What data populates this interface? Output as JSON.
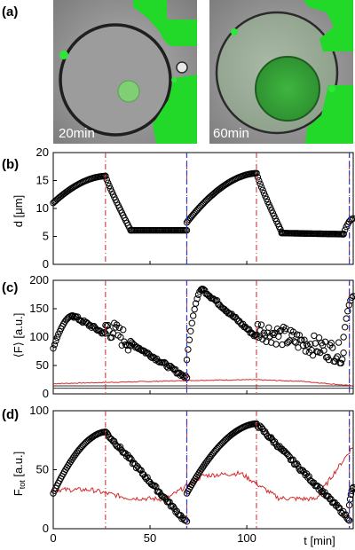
{
  "panel_labels": [
    "(a)",
    "(b)",
    "(c)",
    "(d)"
  ],
  "images": [
    {
      "label": "20min"
    },
    {
      "label": "60min"
    }
  ],
  "colors": {
    "marker_edge": "#000000",
    "red_line": "#d42a2a",
    "red_dashdot": "#c8262b",
    "blue_dash": "#2f3bd6",
    "green": "#22e02a",
    "gray_background": "#8a8a8a"
  },
  "chart_data": [
    {
      "type": "scatter",
      "panel": "(b)",
      "ylabel": "d [μm]",
      "xlabel": "",
      "xlim": [
        0,
        155
      ],
      "ylim": [
        0,
        20
      ],
      "yticks": [
        0,
        5,
        10,
        15,
        20
      ],
      "xticks": [
        0,
        50,
        100
      ],
      "vlines_red": [
        27,
        69,
        105,
        153
      ],
      "vlines_blue": [
        69,
        153
      ],
      "segments": [
        {
          "kind": "grow",
          "x0": 0,
          "x1": 27,
          "y0": 11,
          "y1": 15.8
        },
        {
          "kind": "shrink",
          "x0": 27,
          "x1": 40,
          "y0": 15.8,
          "y1": 6.1
        },
        {
          "kind": "flat",
          "x0": 40,
          "x1": 69,
          "y0": 6.1,
          "y1": 6.1
        },
        {
          "kind": "grow",
          "x0": 69,
          "x1": 105,
          "y0": 7.5,
          "y1": 16.3
        },
        {
          "kind": "shrink",
          "x0": 105,
          "x1": 118,
          "y0": 16.3,
          "y1": 5.8
        },
        {
          "kind": "flat",
          "x0": 118,
          "x1": 150,
          "y0": 5.6,
          "y1": 5.4
        },
        {
          "kind": "grow",
          "x0": 150,
          "x1": 155,
          "y0": 5.5,
          "y1": 8.2
        }
      ]
    },
    {
      "type": "scatter",
      "panel": "(c)",
      "ylabel": "⟨F⟩ [a.u.]",
      "xlabel": "",
      "xlim": [
        0,
        155
      ],
      "ylim": [
        0,
        200
      ],
      "yticks": [
        0,
        50,
        100,
        150,
        200
      ],
      "xticks": [
        0,
        50,
        100
      ],
      "vlines_red": [
        27,
        69,
        105,
        153
      ],
      "vlines_blue": [
        69,
        153
      ],
      "horizontal_lines": [
        10,
        14
      ],
      "red_series_level": [
        18,
        20,
        22,
        24,
        25,
        22,
        14
      ],
      "segments": [
        {
          "kind": "rise",
          "x0": 0,
          "x1": 10,
          "y0": 80,
          "y1": 138
        },
        {
          "kind": "decay",
          "x0": 10,
          "x1": 27,
          "y0": 138,
          "y1": 105
        },
        {
          "kind": "noisy",
          "x0": 27,
          "x1": 40,
          "y0": 120,
          "y1": 90
        },
        {
          "kind": "decay",
          "x0": 40,
          "x1": 69,
          "y0": 90,
          "y1": 28
        },
        {
          "kind": "rise",
          "x0": 69,
          "x1": 77,
          "y0": 60,
          "y1": 185
        },
        {
          "kind": "decay",
          "x0": 77,
          "x1": 105,
          "y0": 185,
          "y1": 100
        },
        {
          "kind": "noisy",
          "x0": 105,
          "x1": 150,
          "y0": 115,
          "y1": 70
        },
        {
          "kind": "rise",
          "x0": 150,
          "x1": 155,
          "y0": 100,
          "y1": 172
        }
      ]
    },
    {
      "type": "scatter",
      "panel": "(d)",
      "ylabel": "F_tot [a.u.]",
      "xlabel": "t [min]",
      "xlim": [
        0,
        155
      ],
      "ylim": [
        0,
        100
      ],
      "yticks": [
        0,
        50,
        100
      ],
      "xticks": [
        0,
        50,
        100
      ],
      "vlines_red": [
        27,
        69,
        105,
        153
      ],
      "vlines_blue": [
        69,
        153
      ],
      "red_series_level": [
        33,
        33,
        26,
        25,
        45,
        47,
        26,
        25,
        70
      ],
      "segments": [
        {
          "kind": "rise",
          "x0": 0,
          "x1": 27,
          "y0": 30,
          "y1": 82
        },
        {
          "kind": "decay",
          "x0": 27,
          "x1": 69,
          "y0": 82,
          "y1": 5
        },
        {
          "kind": "rise",
          "x0": 69,
          "x1": 105,
          "y0": 30,
          "y1": 89
        },
        {
          "kind": "decay",
          "x0": 105,
          "x1": 153,
          "y0": 89,
          "y1": 8
        },
        {
          "kind": "rise",
          "x0": 153,
          "x1": 155,
          "y0": 20,
          "y1": 35
        }
      ]
    }
  ]
}
